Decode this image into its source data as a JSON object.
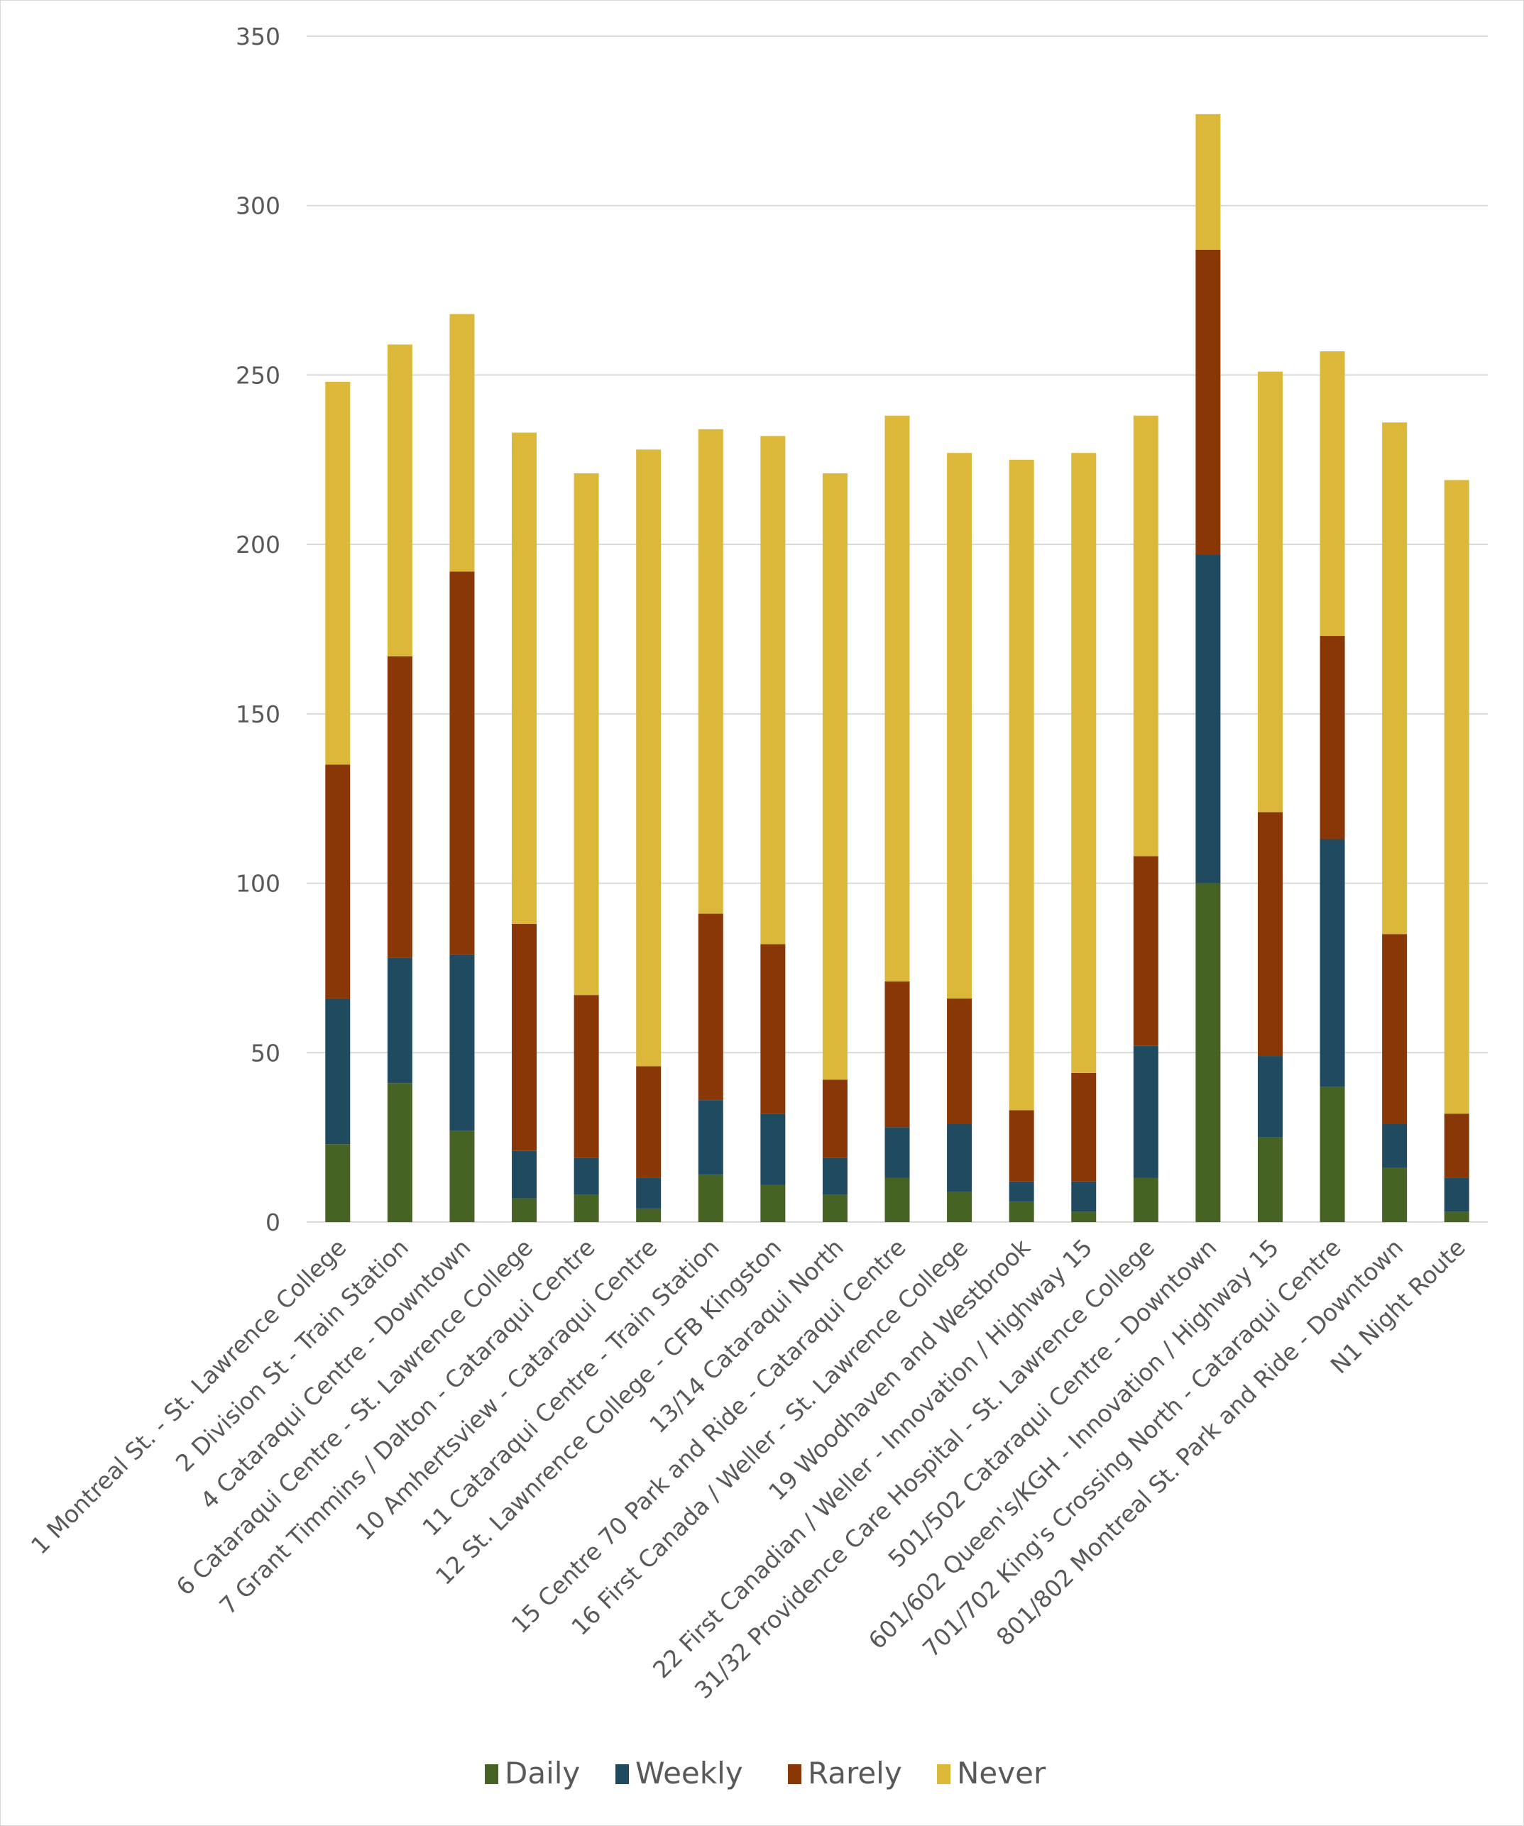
{
  "chart_data": {
    "type": "bar",
    "stacked": true,
    "title": "",
    "xlabel": "",
    "ylabel": "",
    "ylim": [
      0,
      350
    ],
    "yticks": [
      0,
      50,
      100,
      150,
      200,
      250,
      300,
      350
    ],
    "grid": true,
    "legend_position": "bottom",
    "categories": [
      "1 Montreal St. - St. Lawrence College",
      "2 Division St - Train Station",
      "4 Cataraqui Centre - Downtown",
      "6 Cataraqui Centre - St. Lawrence College",
      "7 Grant Timmins / Dalton - Cataraqui Centre",
      "10 Amhertsview - Cataraqui Centre",
      "11 Cataraqui Centre - Train Station",
      "12 St. Lawnrence College - CFB Kingston",
      "13/14 Cataraqui North",
      "15 Centre 70 Park and Ride - Cataraqui Centre",
      "16 First Canada / Weller - St. Lawrence College",
      "19 Woodhaven and Westbrook",
      "22 First Canadian / Weller - Innovation / Highway 15",
      "31/32 Providence Care Hospital - St. Lawrence College",
      "501/502 Cataraqui Centre - Downtown",
      "601/602 Queen's/KGH - Innovation / Highway 15",
      "701/702 King's Crossing North - Cataraqui Centre",
      "801/802 Montreal St. Park and Ride - Downtown",
      "N1 Night Route"
    ],
    "series": [
      {
        "name": "Daily",
        "color": "#476323",
        "values": [
          23,
          41,
          27,
          7,
          8,
          4,
          14,
          11,
          8,
          13,
          9,
          6,
          3,
          13,
          100,
          25,
          40,
          16,
          3
        ]
      },
      {
        "name": "Weekly",
        "color": "#1f4a5f",
        "values": [
          43,
          37,
          52,
          14,
          11,
          9,
          22,
          21,
          11,
          15,
          20,
          6,
          9,
          39,
          97,
          24,
          73,
          13,
          10
        ]
      },
      {
        "name": "Rarely",
        "color": "#8a3707",
        "values": [
          69,
          89,
          113,
          67,
          48,
          33,
          55,
          50,
          23,
          43,
          37,
          21,
          32,
          56,
          90,
          72,
          60,
          56,
          19
        ]
      },
      {
        "name": "Never",
        "color": "#dcb83a",
        "values": [
          113,
          92,
          76,
          145,
          154,
          182,
          143,
          150,
          179,
          167,
          161,
          192,
          183,
          130,
          40,
          130,
          84,
          151,
          187
        ]
      }
    ]
  }
}
